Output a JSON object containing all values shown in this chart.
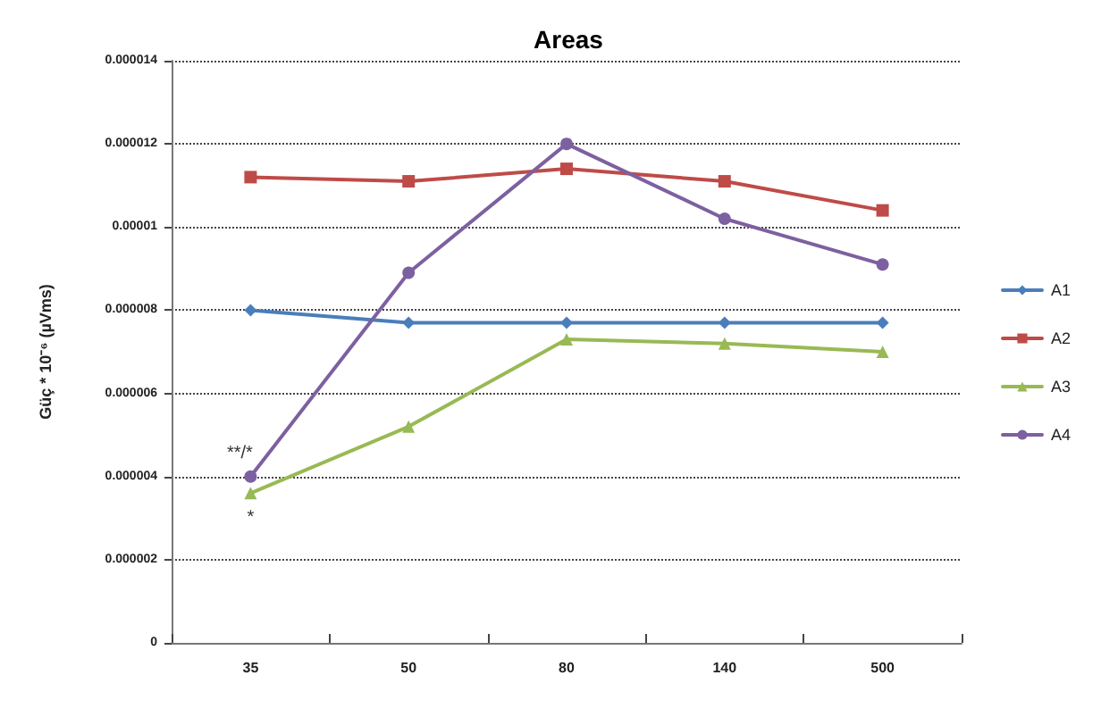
{
  "chart_data": {
    "type": "line",
    "title": "Areas",
    "ylabel": "Güç * 10⁻⁶ (µVms)",
    "categories": [
      "35",
      "50",
      "80",
      "140",
      "500"
    ],
    "series": [
      {
        "name": "A1",
        "color": "#4a7ebb",
        "marker": "diamond",
        "values": [
          8e-06,
          7.7e-06,
          7.7e-06,
          7.7e-06,
          7.7e-06
        ]
      },
      {
        "name": "A2",
        "color": "#be4b48",
        "marker": "square",
        "values": [
          1.12e-05,
          1.11e-05,
          1.14e-05,
          1.11e-05,
          1.04e-05
        ]
      },
      {
        "name": "A3",
        "color": "#98b954",
        "marker": "triangle",
        "values": [
          3.6e-06,
          5.2e-06,
          7.3e-06,
          7.2e-06,
          7e-06
        ]
      },
      {
        "name": "A4",
        "color": "#7d60a0",
        "marker": "circle",
        "values": [
          4e-06,
          8.9e-06,
          1.2e-05,
          1.02e-05,
          9.1e-06
        ]
      }
    ],
    "ylim": [
      0,
      1.4e-05
    ],
    "yticks": [
      0,
      {
        "value": 2e-06,
        "label": "0.000002"
      },
      {
        "value": 4e-06,
        "label": "0.000004"
      },
      {
        "value": 6e-06,
        "label": "0.000006"
      },
      {
        "value": 8e-06,
        "label": "0.000008"
      },
      {
        "value": 1e-05,
        "label": "0.00001"
      },
      {
        "value": 1.2e-05,
        "label": "0.000012"
      },
      {
        "value": 1.4e-05,
        "label": "0.000014"
      }
    ],
    "grid": "y",
    "legend": "right",
    "annotations": [
      {
        "text": "**/*",
        "x": "35",
        "y": 4e-06
      },
      {
        "text": "*",
        "x": "35",
        "y": 3.6e-06
      }
    ]
  }
}
